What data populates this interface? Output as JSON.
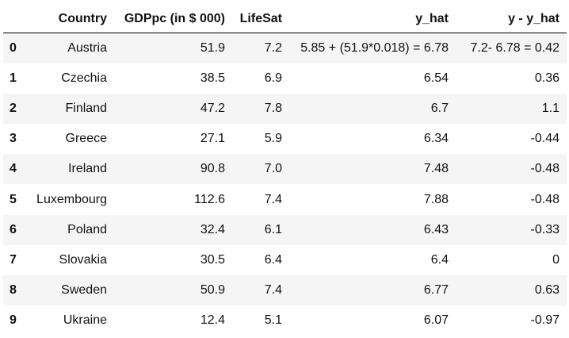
{
  "table": {
    "columns": [
      "",
      "Country",
      "GDPpc (in $ 000)",
      "LifeSat",
      "y_hat",
      "y - y_hat"
    ],
    "rows": [
      {
        "index": "0",
        "country": "Austria",
        "gdppc": "51.9",
        "lifesat": "7.2",
        "y_hat": "5.85 + (51.9*0.018) = 6.78",
        "residual": "7.2- 6.78 = 0.42"
      },
      {
        "index": "1",
        "country": "Czechia",
        "gdppc": "38.5",
        "lifesat": "6.9",
        "y_hat": "6.54",
        "residual": "0.36"
      },
      {
        "index": "2",
        "country": "Finland",
        "gdppc": "47.2",
        "lifesat": "7.8",
        "y_hat": "6.7",
        "residual": "1.1"
      },
      {
        "index": "3",
        "country": "Greece",
        "gdppc": "27.1",
        "lifesat": "5.9",
        "y_hat": "6.34",
        "residual": "-0.44"
      },
      {
        "index": "4",
        "country": "Ireland",
        "gdppc": "90.8",
        "lifesat": "7.0",
        "y_hat": "7.48",
        "residual": "-0.48"
      },
      {
        "index": "5",
        "country": "Luxembourg",
        "gdppc": "112.6",
        "lifesat": "7.4",
        "y_hat": "7.88",
        "residual": "-0.48"
      },
      {
        "index": "6",
        "country": "Poland",
        "gdppc": "32.4",
        "lifesat": "6.1",
        "y_hat": "6.43",
        "residual": "-0.33"
      },
      {
        "index": "7",
        "country": "Slovakia",
        "gdppc": "30.5",
        "lifesat": "6.4",
        "y_hat": "6.4",
        "residual": "0"
      },
      {
        "index": "8",
        "country": "Sweden",
        "gdppc": "50.9",
        "lifesat": "7.4",
        "y_hat": "6.77",
        "residual": "0.63"
      },
      {
        "index": "9",
        "country": "Ukraine",
        "gdppc": "12.4",
        "lifesat": "5.1",
        "y_hat": "6.07",
        "residual": "-0.97"
      }
    ]
  },
  "colors": {
    "stripe": "#f5f5f5",
    "text": "#111111",
    "header_rule": "#000000"
  }
}
